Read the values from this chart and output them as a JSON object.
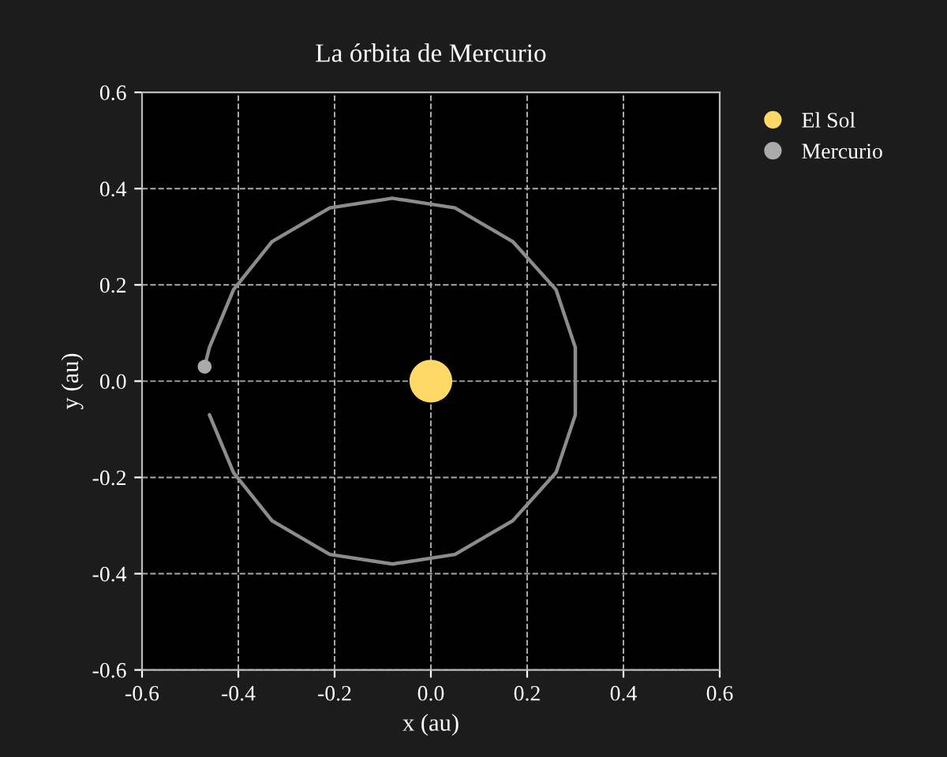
{
  "chart_data": {
    "type": "scatter",
    "title": "La órbita de Mercurio",
    "xlabel": "x (au)",
    "ylabel": "y (au)",
    "xlim": [
      -0.6,
      0.6
    ],
    "ylim": [
      -0.6,
      0.6
    ],
    "xticks": [
      -0.6,
      -0.4,
      -0.2,
      {
        "value": 0,
        "label": "0.0"
      },
      0.2,
      0.4,
      0.6
    ],
    "yticks": [
      -0.6,
      -0.4,
      -0.2,
      {
        "value": 0,
        "label": "0.0"
      },
      0.2,
      0.4,
      0.6
    ],
    "grid": true,
    "legend": "top right",
    "series": [
      {
        "type": "line",
        "color": "#8c8c8c",
        "x": [
          -0.46,
          -0.41,
          -0.33,
          -0.21,
          -0.08,
          0.05,
          0.17,
          0.26,
          0.3,
          0.3,
          0.26,
          0.17,
          0.05,
          -0.08,
          -0.21,
          -0.33,
          -0.41,
          -0.46,
          -0.47
        ],
        "values": [
          -0.07,
          -0.19,
          -0.29,
          -0.36,
          -0.38,
          -0.36,
          -0.29,
          -0.19,
          -0.07,
          0.07,
          0.19,
          0.29,
          0.36,
          0.38,
          0.36,
          0.29,
          0.19,
          0.07,
          0.03
        ]
      },
      {
        "name": "El Sol",
        "color": "#ffd966",
        "marker": "circle",
        "x": [
          0.0
        ],
        "values": [
          0.0
        ]
      },
      {
        "name": "Mercurio",
        "color": "#aaaaaa",
        "marker": "circle",
        "x": [
          -0.47
        ],
        "values": [
          0.03
        ]
      }
    ]
  }
}
